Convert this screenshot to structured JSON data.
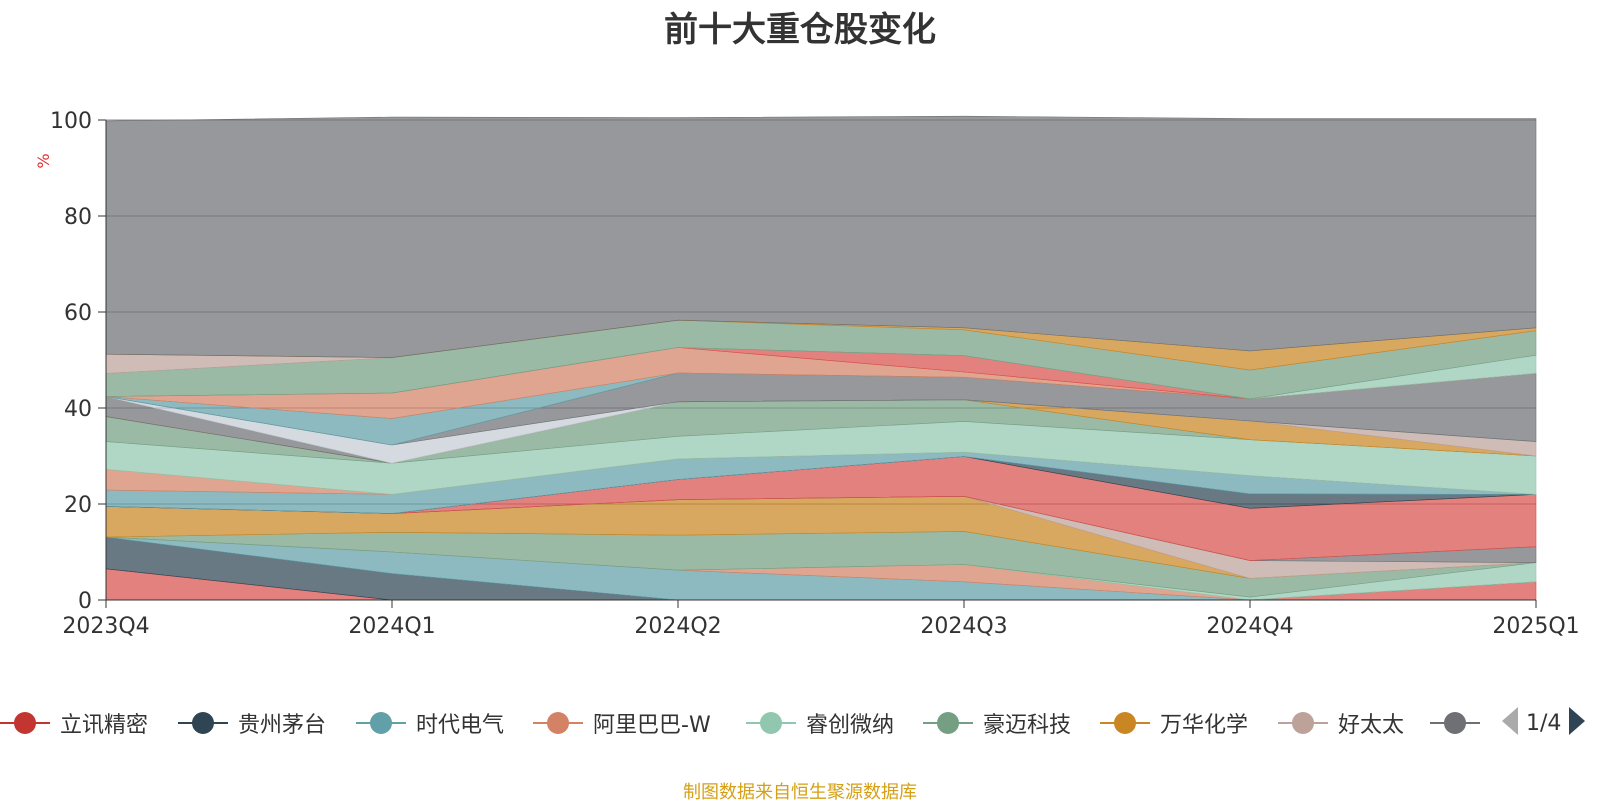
{
  "chart_data": {
    "type": "area",
    "title": "前十大重仓股变化",
    "ylabel": "%",
    "x": [
      "2023Q4",
      "2024Q1",
      "2024Q2",
      "2024Q3",
      "2024Q4",
      "2025Q1"
    ],
    "ylim": [
      0,
      100
    ],
    "yticks": [
      0,
      20,
      40,
      60,
      80,
      100
    ],
    "grid": true,
    "legend_position": "bottom",
    "series": [
      {
        "name": "立讯精密",
        "color": "#d7504b",
        "values": [
          6.5,
          0,
          0,
          0,
          0,
          3.8
        ]
      },
      {
        "name": "贵州茅台",
        "color": "#2f4554",
        "values": [
          6.6,
          5.5,
          0,
          0,
          0,
          0
        ]
      },
      {
        "name": "时代电气",
        "color": "#61a0a8",
        "values": [
          0,
          4.5,
          6.2,
          3.8,
          0,
          0
        ]
      },
      {
        "name": "阿里巴巴-W",
        "color": "#d48265",
        "values": [
          0,
          0,
          0,
          3.6,
          0,
          0
        ]
      },
      {
        "name": "睿创微纳",
        "color": "#91c7ae",
        "values": [
          0,
          0,
          0,
          0,
          0.6,
          4
        ]
      },
      {
        "name": "豪迈科技",
        "color": "#749f83",
        "values": [
          0,
          4.1,
          7.3,
          6.9,
          3.9,
          0
        ]
      },
      {
        "name": "万华化学",
        "color": "#ca8622",
        "values": [
          6.4,
          3.9,
          7.4,
          7.3,
          0,
          0
        ]
      },
      {
        "name": "好太太",
        "color": "#bda29a",
        "values": [
          0,
          0,
          0,
          0,
          3.7,
          0
        ]
      },
      {
        "name": "",
        "color": "#6e7074",
        "values": [
          0,
          0,
          0,
          0,
          0,
          3.3
        ]
      },
      {
        "name": "",
        "color": "#d7504b",
        "values": [
          0,
          0,
          4.2,
          8.3,
          10.9,
          10.9
        ]
      },
      {
        "name": "",
        "color": "#2f4554",
        "values": [
          0,
          0,
          0,
          0,
          3,
          0
        ]
      },
      {
        "name": "",
        "color": "#61a0a8",
        "values": [
          3.4,
          4,
          4.3,
          0.9,
          3.8,
          0
        ]
      },
      {
        "name": "",
        "color": "#d48265",
        "values": [
          4.3,
          0,
          0,
          0,
          0,
          0
        ]
      },
      {
        "name": "",
        "color": "#91c7ae",
        "values": [
          5.8,
          6.5,
          4.7,
          6.4,
          7.5,
          8
        ]
      },
      {
        "name": "",
        "color": "#749f83",
        "values": [
          5.2,
          0,
          7.2,
          4.5,
          0,
          0
        ]
      },
      {
        "name": "",
        "color": "#ca8622",
        "values": [
          0,
          0,
          0,
          0,
          3.9,
          0
        ]
      },
      {
        "name": "",
        "color": "#bda29a",
        "values": [
          0,
          0,
          0,
          0,
          0,
          3
        ]
      },
      {
        "name": "",
        "color": "#6e7074",
        "values": [
          4.2,
          0,
          0,
          0,
          0,
          0
        ]
      },
      {
        "name": "",
        "color": "#c4ccd3",
        "values": [
          0,
          3.8,
          0,
          0,
          0,
          0
        ]
      },
      {
        "name": "",
        "color": "#6e7074",
        "values": [
          0,
          0,
          6,
          4.7,
          4.6,
          14.2
        ]
      },
      {
        "name": "",
        "color": "#61a0a8",
        "values": [
          0,
          5.5,
          0,
          0,
          0,
          0
        ]
      },
      {
        "name": "",
        "color": "#d48265",
        "values": [
          0,
          5.3,
          5.3,
          1.1,
          0,
          0
        ]
      },
      {
        "name": "",
        "color": "#d7504b",
        "values": [
          0,
          0,
          0,
          3.4,
          0,
          0
        ]
      },
      {
        "name": "",
        "color": "#91c7ae",
        "values": [
          0,
          0,
          0,
          0,
          0,
          3.8
        ]
      },
      {
        "name": "",
        "color": "#749f83",
        "values": [
          4.8,
          7.4,
          5.7,
          5.4,
          6,
          5.1
        ]
      },
      {
        "name": "",
        "color": "#bda29a",
        "values": [
          4,
          0,
          0,
          0,
          0,
          0
        ]
      },
      {
        "name": "",
        "color": "#ca8622",
        "values": [
          0,
          0,
          0,
          0.4,
          4,
          0.6
        ]
      },
      {
        "name": "",
        "color": "#6e7074",
        "values": [
          48.6,
          50.1,
          42.2,
          44.1,
          48.4,
          43.6
        ]
      }
    ]
  },
  "legend": {
    "items": [
      {
        "name": "立讯精密",
        "color": "#c23531"
      },
      {
        "name": "贵州茅台",
        "color": "#2f4554"
      },
      {
        "name": "时代电气",
        "color": "#61a0a8"
      },
      {
        "name": "阿里巴巴-W",
        "color": "#d48265"
      },
      {
        "name": "睿创微纳",
        "color": "#91c7ae"
      },
      {
        "name": "豪迈科技",
        "color": "#749f83"
      },
      {
        "name": "万华化学",
        "color": "#ca8622"
      },
      {
        "name": "好太太",
        "color": "#bda29a"
      },
      {
        "name": "",
        "color": "#6e7074"
      }
    ],
    "page_indicator": "1/4",
    "prev_icon": "triangle-left-icon",
    "next_icon": "triangle-right-icon"
  },
  "source_note": "制图数据来自恒生聚源数据库"
}
